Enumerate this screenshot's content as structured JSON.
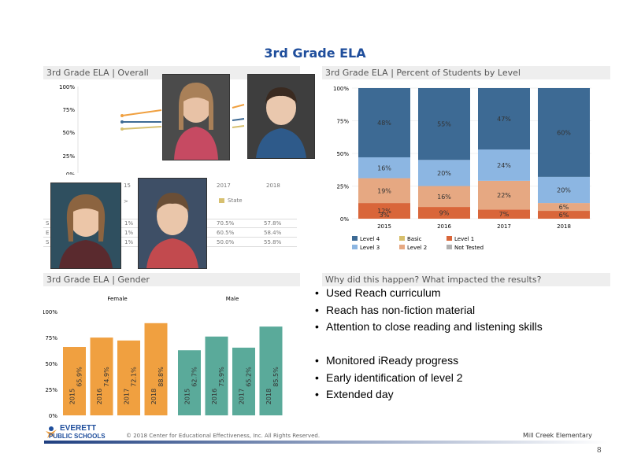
{
  "slide_title": "3rd Grade ELA",
  "panels": {
    "overall": "3rd Grade ELA | Overall",
    "levels": "3rd Grade ELA | Percent of Students by Level",
    "gender": "3rd Grade ELA | Gender",
    "why": "Why did this happen? What impacted the results?"
  },
  "overall_chart": {
    "yticks": [
      "100%",
      "75%",
      "50%",
      "25%",
      "0%"
    ],
    "table_header_frag": [
      "15",
      "2017",
      "2018"
    ],
    "state_legend": "State",
    "row_stubs": [
      "S",
      "E",
      "S"
    ],
    "rows": [
      [
        "1%",
        "70.5%",
        "57.8%"
      ],
      [
        "1%",
        "60.5%",
        "58.4%"
      ],
      [
        "1%",
        "50.0%",
        "55.8%"
      ]
    ],
    "arrow": ">"
  },
  "chart_data": [
    {
      "type": "bar",
      "stacked": true,
      "title": "3rd Grade ELA | Percent of Students by Level",
      "categories": [
        "2015",
        "2016",
        "2017",
        "2018"
      ],
      "yticks": [
        "100%",
        "75%",
        "50%",
        "25%",
        "0%"
      ],
      "ylim": [
        0,
        100
      ],
      "series": [
        {
          "name": "Not Tested",
          "color": "#b0b0b0",
          "values": [
            0,
            0,
            0,
            0
          ]
        },
        {
          "name": "Level 1",
          "color": "#d9663a",
          "values": [
            12,
            9,
            7,
            6
          ]
        },
        {
          "name": "Level 2",
          "color": "#e6a882",
          "values": [
            19,
            16,
            22,
            6
          ]
        },
        {
          "name": "Level 3",
          "color": "#8cb6e2",
          "values": [
            16,
            20,
            24,
            20
          ]
        },
        {
          "name": "Level 4",
          "color": "#3d6a94",
          "values": [
            48,
            55,
            47,
            60
          ]
        }
      ],
      "extra_labels": [
        {
          "category": "2015",
          "text": "3%"
        }
      ],
      "legend": [
        [
          "Level 4",
          "#3d6a94"
        ],
        [
          "Basic",
          "#d7bf6c"
        ],
        [
          "Level 1",
          "#d9663a"
        ],
        [
          "Level 3",
          "#8cb6e2"
        ],
        [
          "Level 2",
          "#e6a882"
        ],
        [
          "Not Tested",
          "#b0b0b0"
        ]
      ],
      "legend_placement": "bottom"
    },
    {
      "type": "bar",
      "title": "3rd Grade ELA | Gender",
      "groups": [
        "Female",
        "Male"
      ],
      "categories": [
        "2015",
        "2016",
        "2017",
        "2018",
        "2015",
        "2016",
        "2017",
        "2018"
      ],
      "values": [
        65.9,
        74.9,
        72.1,
        88.8,
        62.7,
        75.9,
        65.2,
        85.5
      ],
      "labels": [
        "65.9%",
        "74.9%",
        "72.1%",
        "88.8%",
        "62.7%",
        "75.9%",
        "65.2%",
        "85.5%"
      ],
      "colors": [
        "#f0a040",
        "#f0a040",
        "#f0a040",
        "#f0a040",
        "#5aaa9a",
        "#5aaa9a",
        "#5aaa9a",
        "#5aaa9a"
      ],
      "yticks": [
        "100%",
        "75%",
        "50%",
        "25%",
        "0%"
      ],
      "ylim": [
        0,
        100
      ]
    }
  ],
  "why_bullets": [
    "Used Reach curriculum",
    "Reach has non-fiction material",
    "Attention to close reading and listening skills",
    "",
    "Monitored iReady progress",
    "Early identification of level 2",
    "Extended day"
  ],
  "footer": {
    "logo_line1": "EVERETT",
    "logo_line2": "PUBLIC SCHOOLS",
    "copyright": "© 2018 Center for Educational Effectiveness, Inc. All Rights Reserved.",
    "school": "Mill Creek Elementary",
    "page": "8"
  }
}
